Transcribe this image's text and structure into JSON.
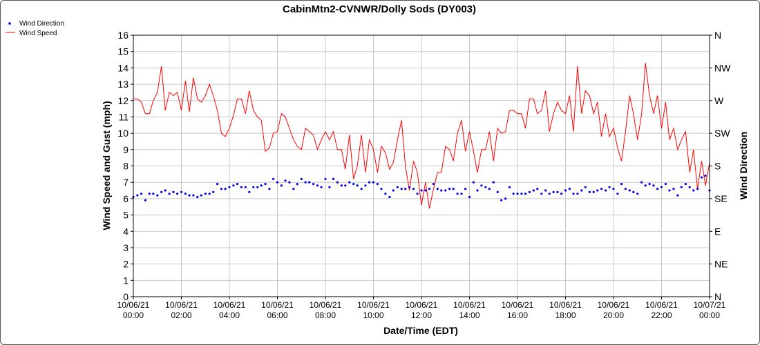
{
  "chart_data": {
    "type": "line",
    "title": "CabinMtn2-CVNWR/Dolly Sods (DY003)",
    "xlabel": "Date/Time (EDT)",
    "ylabel": "Wind Speed and Gust (mph)",
    "ylabel_right": "Wind Direction",
    "ylim": [
      0,
      16
    ],
    "grid": true,
    "legend_position": "top-left",
    "y_ticks": [
      "0",
      "1",
      "2",
      "3",
      "4",
      "5",
      "6",
      "7",
      "8",
      "9",
      "10",
      "11",
      "12",
      "13",
      "14",
      "15",
      "16"
    ],
    "right_ticks": [
      "N",
      "NE",
      "E",
      "SE",
      "S",
      "SW",
      "W",
      "NW",
      "N"
    ],
    "x_ticks": [
      {
        "date": "10/06/21",
        "time": "00:00"
      },
      {
        "date": "10/06/21",
        "time": "02:00"
      },
      {
        "date": "10/06/21",
        "time": "04:00"
      },
      {
        "date": "10/06/21",
        "time": "06:00"
      },
      {
        "date": "10/06/21",
        "time": "08:00"
      },
      {
        "date": "10/06/21",
        "time": "10:00"
      },
      {
        "date": "10/06/21",
        "time": "12:00"
      },
      {
        "date": "10/06/21",
        "time": "14:00"
      },
      {
        "date": "10/06/21",
        "time": "16:00"
      },
      {
        "date": "10/06/21",
        "time": "18:00"
      },
      {
        "date": "10/06/21",
        "time": "20:00"
      },
      {
        "date": "10/06/21",
        "time": "22:00"
      },
      {
        "date": "10/07/21",
        "time": "00:00"
      }
    ],
    "x_hours_range": [
      0,
      24
    ],
    "series": [
      {
        "name": "Wind Speed",
        "color": "#ff0000",
        "kind": "line",
        "points": [
          [
            0.0,
            12.1
          ],
          [
            0.17,
            12.1
          ],
          [
            0.33,
            11.9
          ],
          [
            0.5,
            11.2
          ],
          [
            0.67,
            11.2
          ],
          [
            0.83,
            12.0
          ],
          [
            1.0,
            12.5
          ],
          [
            1.17,
            14.1
          ],
          [
            1.33,
            11.4
          ],
          [
            1.5,
            12.5
          ],
          [
            1.67,
            12.3
          ],
          [
            1.83,
            12.5
          ],
          [
            2.0,
            11.4
          ],
          [
            2.17,
            13.2
          ],
          [
            2.33,
            11.3
          ],
          [
            2.5,
            13.4
          ],
          [
            2.67,
            12.1
          ],
          [
            2.83,
            11.9
          ],
          [
            3.0,
            12.3
          ],
          [
            3.17,
            13.0
          ],
          [
            3.33,
            12.3
          ],
          [
            3.5,
            11.4
          ],
          [
            3.67,
            10.0
          ],
          [
            3.83,
            9.8
          ],
          [
            4.0,
            10.3
          ],
          [
            4.17,
            11.1
          ],
          [
            4.33,
            12.1
          ],
          [
            4.5,
            12.1
          ],
          [
            4.67,
            11.2
          ],
          [
            4.83,
            12.6
          ],
          [
            5.0,
            11.4
          ],
          [
            5.17,
            11.0
          ],
          [
            5.33,
            10.8
          ],
          [
            5.5,
            8.9
          ],
          [
            5.67,
            9.1
          ],
          [
            5.83,
            10.0
          ],
          [
            6.0,
            10.1
          ],
          [
            6.17,
            11.2
          ],
          [
            6.33,
            11.0
          ],
          [
            6.5,
            10.3
          ],
          [
            6.67,
            9.6
          ],
          [
            6.83,
            9.2
          ],
          [
            7.0,
            9.0
          ],
          [
            7.17,
            10.3
          ],
          [
            7.33,
            10.1
          ],
          [
            7.5,
            9.9
          ],
          [
            7.67,
            9.0
          ],
          [
            7.83,
            9.6
          ],
          [
            8.0,
            10.1
          ],
          [
            8.17,
            9.6
          ],
          [
            8.33,
            10.1
          ],
          [
            8.5,
            9.0
          ],
          [
            8.67,
            9.0
          ],
          [
            8.83,
            7.8
          ],
          [
            9.0,
            9.9
          ],
          [
            9.17,
            7.2
          ],
          [
            9.33,
            8.0
          ],
          [
            9.5,
            9.9
          ],
          [
            9.67,
            7.6
          ],
          [
            9.83,
            9.6
          ],
          [
            10.0,
            9.0
          ],
          [
            10.17,
            7.6
          ],
          [
            10.33,
            9.2
          ],
          [
            10.5,
            8.8
          ],
          [
            10.67,
            7.8
          ],
          [
            10.83,
            8.2
          ],
          [
            11.0,
            9.6
          ],
          [
            11.17,
            10.8
          ],
          [
            11.33,
            8.0
          ],
          [
            11.5,
            6.5
          ],
          [
            11.67,
            8.3
          ],
          [
            11.83,
            7.6
          ],
          [
            12.0,
            5.6
          ],
          [
            12.17,
            7.0
          ],
          [
            12.33,
            5.4
          ],
          [
            12.5,
            6.6
          ],
          [
            12.67,
            7.6
          ],
          [
            12.83,
            7.6
          ],
          [
            13.0,
            9.2
          ],
          [
            13.17,
            9.0
          ],
          [
            13.33,
            8.3
          ],
          [
            13.5,
            10.0
          ],
          [
            13.67,
            10.8
          ],
          [
            13.83,
            8.9
          ],
          [
            14.0,
            10.1
          ],
          [
            14.17,
            8.9
          ],
          [
            14.33,
            7.6
          ],
          [
            14.5,
            9.0
          ],
          [
            14.67,
            9.0
          ],
          [
            14.83,
            10.1
          ],
          [
            15.0,
            8.3
          ],
          [
            15.17,
            10.3
          ],
          [
            15.33,
            10.0
          ],
          [
            15.5,
            10.1
          ],
          [
            15.67,
            11.4
          ],
          [
            15.83,
            11.4
          ],
          [
            16.0,
            11.2
          ],
          [
            16.17,
            11.2
          ],
          [
            16.33,
            10.3
          ],
          [
            16.5,
            12.1
          ],
          [
            16.67,
            12.1
          ],
          [
            16.83,
            11.2
          ],
          [
            17.0,
            11.4
          ],
          [
            17.17,
            12.6
          ],
          [
            17.33,
            10.1
          ],
          [
            17.5,
            11.2
          ],
          [
            17.67,
            11.9
          ],
          [
            17.83,
            11.4
          ],
          [
            18.0,
            11.2
          ],
          [
            18.17,
            12.3
          ],
          [
            18.33,
            10.1
          ],
          [
            18.5,
            14.1
          ],
          [
            18.67,
            11.2
          ],
          [
            18.83,
            12.6
          ],
          [
            19.0,
            12.3
          ],
          [
            19.17,
            11.2
          ],
          [
            19.33,
            11.9
          ],
          [
            19.5,
            9.8
          ],
          [
            19.67,
            11.2
          ],
          [
            19.83,
            9.8
          ],
          [
            20.0,
            10.3
          ],
          [
            20.17,
            9.1
          ],
          [
            20.33,
            8.3
          ],
          [
            20.5,
            10.1
          ],
          [
            20.67,
            12.3
          ],
          [
            20.83,
            11.2
          ],
          [
            21.0,
            9.6
          ],
          [
            21.17,
            11.2
          ],
          [
            21.33,
            14.3
          ],
          [
            21.5,
            12.3
          ],
          [
            21.67,
            11.2
          ],
          [
            21.83,
            12.3
          ],
          [
            22.0,
            10.3
          ],
          [
            22.17,
            11.9
          ],
          [
            22.33,
            9.6
          ],
          [
            22.5,
            10.3
          ],
          [
            22.67,
            9.0
          ],
          [
            22.83,
            9.6
          ],
          [
            23.0,
            10.1
          ],
          [
            23.17,
            7.6
          ],
          [
            23.33,
            9.0
          ],
          [
            23.5,
            6.6
          ],
          [
            23.67,
            8.3
          ],
          [
            23.83,
            6.8
          ],
          [
            24.0,
            8.2
          ]
        ]
      },
      {
        "name": "Wind Direction",
        "color": "#0000ee",
        "kind": "dots",
        "points": [
          [
            0.0,
            6.1
          ],
          [
            0.17,
            6.2
          ],
          [
            0.33,
            6.3
          ],
          [
            0.5,
            5.9
          ],
          [
            0.67,
            6.3
          ],
          [
            0.83,
            6.3
          ],
          [
            1.0,
            6.2
          ],
          [
            1.17,
            6.4
          ],
          [
            1.33,
            6.5
          ],
          [
            1.5,
            6.3
          ],
          [
            1.67,
            6.4
          ],
          [
            1.83,
            6.3
          ],
          [
            2.0,
            6.4
          ],
          [
            2.17,
            6.3
          ],
          [
            2.33,
            6.2
          ],
          [
            2.5,
            6.2
          ],
          [
            2.67,
            6.1
          ],
          [
            2.83,
            6.2
          ],
          [
            3.0,
            6.3
          ],
          [
            3.17,
            6.3
          ],
          [
            3.33,
            6.4
          ],
          [
            3.5,
            6.9
          ],
          [
            3.67,
            6.6
          ],
          [
            3.83,
            6.6
          ],
          [
            4.0,
            6.7
          ],
          [
            4.17,
            6.8
          ],
          [
            4.33,
            6.9
          ],
          [
            4.5,
            6.7
          ],
          [
            4.67,
            6.7
          ],
          [
            4.83,
            6.4
          ],
          [
            5.0,
            6.7
          ],
          [
            5.17,
            6.7
          ],
          [
            5.33,
            6.8
          ],
          [
            5.5,
            6.9
          ],
          [
            5.67,
            6.6
          ],
          [
            5.83,
            7.2
          ],
          [
            6.0,
            7.0
          ],
          [
            6.17,
            6.8
          ],
          [
            6.33,
            7.1
          ],
          [
            6.5,
            7.0
          ],
          [
            6.67,
            6.6
          ],
          [
            6.83,
            6.9
          ],
          [
            7.0,
            7.2
          ],
          [
            7.17,
            7.0
          ],
          [
            7.33,
            7.0
          ],
          [
            7.5,
            6.9
          ],
          [
            7.67,
            6.8
          ],
          [
            7.83,
            6.7
          ],
          [
            8.0,
            7.2
          ],
          [
            8.17,
            6.7
          ],
          [
            8.33,
            7.2
          ],
          [
            8.5,
            7.0
          ],
          [
            8.67,
            6.8
          ],
          [
            8.83,
            6.8
          ],
          [
            9.0,
            7.0
          ],
          [
            9.17,
            6.9
          ],
          [
            9.33,
            6.8
          ],
          [
            9.5,
            6.6
          ],
          [
            9.67,
            6.8
          ],
          [
            9.83,
            7.0
          ],
          [
            10.0,
            7.0
          ],
          [
            10.17,
            6.9
          ],
          [
            10.33,
            6.6
          ],
          [
            10.5,
            6.3
          ],
          [
            10.67,
            6.1
          ],
          [
            10.83,
            6.5
          ],
          [
            11.0,
            6.7
          ],
          [
            11.17,
            6.6
          ],
          [
            11.33,
            6.6
          ],
          [
            11.5,
            6.7
          ],
          [
            11.67,
            6.6
          ],
          [
            11.83,
            6.3
          ],
          [
            12.0,
            6.5
          ],
          [
            12.17,
            6.5
          ],
          [
            12.33,
            6.6
          ],
          [
            12.5,
            6.9
          ],
          [
            12.67,
            6.6
          ],
          [
            12.83,
            6.5
          ],
          [
            13.0,
            6.5
          ],
          [
            13.17,
            6.6
          ],
          [
            13.33,
            6.6
          ],
          [
            13.5,
            6.3
          ],
          [
            13.67,
            6.3
          ],
          [
            13.83,
            6.6
          ],
          [
            14.0,
            6.1
          ],
          [
            14.17,
            7.0
          ],
          [
            14.33,
            6.5
          ],
          [
            14.5,
            6.8
          ],
          [
            14.67,
            6.7
          ],
          [
            14.83,
            6.6
          ],
          [
            15.0,
            7.0
          ],
          [
            15.17,
            6.4
          ],
          [
            15.33,
            5.9
          ],
          [
            15.5,
            6.0
          ],
          [
            15.67,
            6.7
          ],
          [
            15.83,
            6.3
          ],
          [
            16.0,
            6.3
          ],
          [
            16.17,
            6.3
          ],
          [
            16.33,
            6.3
          ],
          [
            16.5,
            6.4
          ],
          [
            16.67,
            6.5
          ],
          [
            16.83,
            6.6
          ],
          [
            17.0,
            6.3
          ],
          [
            17.17,
            6.5
          ],
          [
            17.33,
            6.3
          ],
          [
            17.5,
            6.4
          ],
          [
            17.67,
            6.4
          ],
          [
            17.83,
            6.3
          ],
          [
            18.0,
            6.5
          ],
          [
            18.17,
            6.6
          ],
          [
            18.33,
            6.3
          ],
          [
            18.5,
            6.3
          ],
          [
            18.67,
            6.5
          ],
          [
            18.83,
            6.7
          ],
          [
            19.0,
            6.4
          ],
          [
            19.17,
            6.4
          ],
          [
            19.33,
            6.5
          ],
          [
            19.5,
            6.6
          ],
          [
            19.67,
            6.5
          ],
          [
            19.83,
            6.7
          ],
          [
            20.0,
            6.6
          ],
          [
            20.17,
            6.3
          ],
          [
            20.33,
            6.9
          ],
          [
            20.5,
            6.6
          ],
          [
            20.67,
            6.5
          ],
          [
            20.83,
            6.4
          ],
          [
            21.0,
            6.3
          ],
          [
            21.17,
            7.0
          ],
          [
            21.33,
            6.8
          ],
          [
            21.5,
            6.9
          ],
          [
            21.67,
            6.8
          ],
          [
            21.83,
            6.6
          ],
          [
            22.0,
            6.7
          ],
          [
            22.17,
            6.9
          ],
          [
            22.33,
            6.5
          ],
          [
            22.5,
            6.6
          ],
          [
            22.67,
            6.2
          ],
          [
            22.83,
            6.7
          ],
          [
            23.0,
            6.9
          ],
          [
            23.17,
            6.7
          ],
          [
            23.33,
            6.5
          ],
          [
            23.5,
            6.6
          ],
          [
            23.67,
            7.3
          ],
          [
            23.83,
            7.4
          ],
          [
            24.0,
            6.5
          ]
        ]
      }
    ]
  }
}
